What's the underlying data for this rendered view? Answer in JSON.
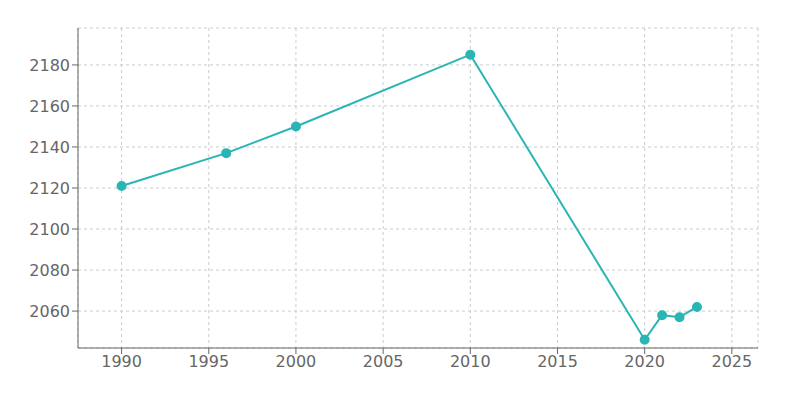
{
  "chart_data": {
    "type": "line",
    "x": [
      1990,
      1996,
      2000,
      2010,
      2020,
      2021,
      2022,
      2023
    ],
    "values": [
      2121,
      2137,
      2150,
      2185,
      2046,
      2058,
      2057,
      2062
    ],
    "color": "#2ab5b5",
    "marker": "circle",
    "xlim": [
      1987.5,
      2026.5
    ],
    "ylim": [
      2042,
      2198
    ],
    "xticks": [
      1990,
      1995,
      2000,
      2005,
      2010,
      2015,
      2020,
      2025
    ],
    "yticks": [
      2060,
      2080,
      2100,
      2120,
      2140,
      2160,
      2180
    ],
    "grid": true
  }
}
